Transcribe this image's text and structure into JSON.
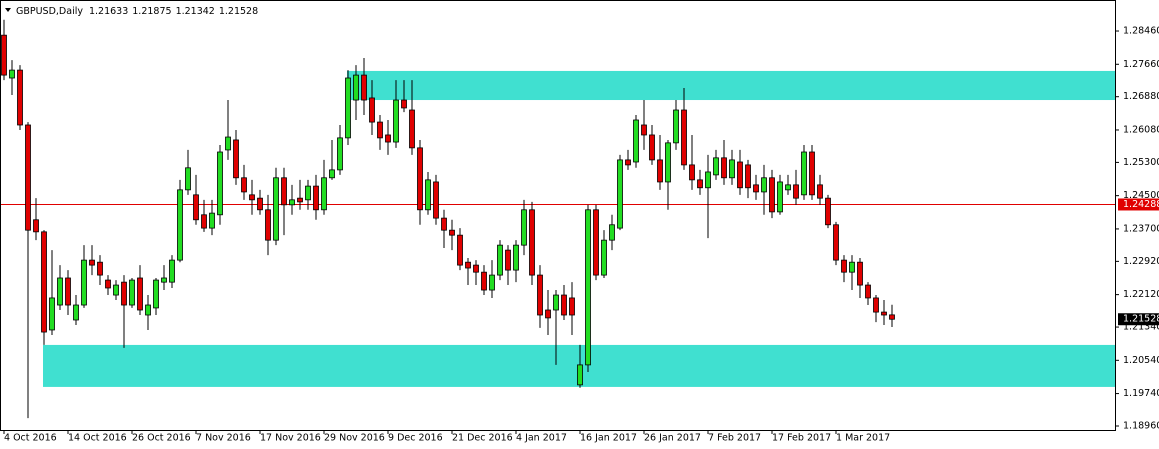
{
  "chart_data": {
    "type": "candlestick",
    "title": "GBPUSD,Daily",
    "categories": [
      "4 Oct 2016",
      null,
      null,
      null,
      null,
      null,
      null,
      null,
      "14 Oct 2016",
      null,
      null,
      null,
      null,
      null,
      null,
      null,
      "26 Oct 2016",
      null,
      null,
      null,
      null,
      null,
      null,
      null,
      "7 Nov 2016",
      null,
      null,
      null,
      null,
      null,
      null,
      null,
      "17 Nov 2016",
      null,
      null,
      null,
      null,
      null,
      null,
      null,
      "29 Nov 2016",
      null,
      null,
      null,
      null,
      null,
      null,
      null,
      "9 Dec 2016",
      null,
      null,
      null,
      null,
      null,
      null,
      null,
      "21 Dec 2016",
      null,
      null,
      null,
      null,
      null,
      null,
      null,
      "4 Jan 2017",
      null,
      null,
      null,
      null,
      null,
      null,
      null,
      "16 Jan 2017",
      null,
      null,
      null,
      null,
      null,
      null,
      null,
      "26 Jan 2017",
      null,
      null,
      null,
      null,
      null,
      null,
      null,
      "7 Feb 2017",
      null,
      null,
      null,
      null,
      null,
      null,
      null,
      "17 Feb 2017",
      null,
      null,
      null,
      null,
      null,
      null,
      null,
      "1 Mar 2017",
      null,
      null,
      null,
      null,
      null,
      null,
      null
    ],
    "open": [
      1.2836,
      1.2733,
      1.2752,
      1.262,
      1.2392,
      1.2363,
      1.2127,
      1.2187,
      1.2252,
      1.2151,
      1.2187,
      1.2295,
      1.229,
      1.2247,
      1.2211,
      1.2242,
      1.2187,
      1.2252,
      1.2163,
      1.218,
      1.2242,
      1.2242,
      1.2295,
      1.2464,
      1.2452,
      1.2404,
      1.2372,
      1.2404,
      1.256,
      1.2584,
      1.2493,
      1.2452,
      1.2444,
      1.2416,
      1.2343,
      1.2493,
      1.2428,
      1.2444,
      1.244,
      1.2473,
      1.2416,
      1.2493,
      1.2512,
      1.2589,
      1.268,
      1.274,
      1.2685,
      1.2627,
      1.2596,
      1.2579,
      1.268,
      1.2656,
      1.2565,
      1.2416,
      1.2483,
      1.2396,
      1.2367,
      1.2355,
      1.229,
      1.2283,
      1.2266,
      1.2223,
      1.2259,
      1.2319,
      1.2271,
      1.2331,
      1.2416,
      1.2259,
      1.2175,
      1.2175,
      1.2211,
      1.2204,
      1.1995,
      1.2043,
      1.2416,
      1.2259,
      1.2343,
      1.2372,
      1.2536,
      1.2531,
      1.262,
      1.2596,
      1.2536,
      1.2483,
      1.2577,
      1.2656,
      1.2524,
      1.2488,
      1.2469,
      1.25,
      1.2541,
      1.2493,
      1.2531,
      1.2524,
      1.2476,
      1.2459,
      1.2493,
      1.2411,
      1.2464,
      1.2476,
      1.2452,
      1.2555,
      1.2476,
      1.2444,
      1.238,
      1.2295,
      1.2266,
      1.229,
      1.2235,
      1.2204,
      1.217,
      1.21633
    ],
    "high": [
      1.2873,
      1.2776,
      1.2764,
      1.2627,
      1.2444,
      1.2367,
      1.2319,
      1.2283,
      1.2271,
      1.2211,
      1.2331,
      1.2331,
      1.2307,
      1.2259,
      1.2247,
      1.2259,
      1.2252,
      1.2283,
      1.2211,
      1.2252,
      1.2283,
      1.2307,
      1.2488,
      1.256,
      1.25,
      1.244,
      1.244,
      1.2572,
      1.268,
      1.2608,
      1.2524,
      1.2488,
      1.2464,
      1.2452,
      1.2517,
      1.2517,
      1.2476,
      1.2488,
      1.2488,
      1.25,
      1.2536,
      1.2584,
      1.262,
      1.2752,
      1.2764,
      1.2781,
      1.2728,
      1.2644,
      1.2632,
      1.2728,
      1.2728,
      1.2728,
      1.2584,
      1.2507,
      1.25,
      1.2416,
      1.2392,
      1.2372,
      1.23,
      1.2295,
      1.2283,
      1.2295,
      1.2343,
      1.2331,
      1.2343,
      1.244,
      1.2435,
      1.2283,
      1.2223,
      1.2223,
      1.2235,
      1.2242,
      1.2091,
      1.2428,
      1.2428,
      1.2367,
      1.2404,
      1.2548,
      1.256,
      1.2644,
      1.268,
      1.262,
      1.2596,
      1.2584,
      1.268,
      1.2709,
      1.2596,
      1.2512,
      1.2548,
      1.256,
      1.2584,
      1.256,
      1.256,
      1.2536,
      1.25,
      1.2524,
      1.2512,
      1.25,
      1.25,
      1.2512,
      1.2572,
      1.2572,
      1.25,
      1.2452,
      1.2387,
      1.2307,
      1.2307,
      1.23,
      1.2242,
      1.2211,
      1.2199,
      1.21875
    ],
    "low": [
      1.2728,
      1.2692,
      1.2608,
      1.1915,
      1.2343,
      1.2091,
      1.2115,
      1.2175,
      1.2163,
      1.2139,
      1.218,
      1.2259,
      1.2235,
      1.2211,
      1.2199,
      1.2084,
      1.218,
      1.2163,
      1.2127,
      1.2163,
      1.2223,
      1.2228,
      1.229,
      1.2452,
      1.238,
      1.2363,
      1.2355,
      1.238,
      1.2536,
      1.2476,
      1.244,
      1.2404,
      1.2404,
      1.2307,
      1.2331,
      1.2355,
      1.2404,
      1.2416,
      1.2416,
      1.2392,
      1.2404,
      1.2488,
      1.25,
      1.2572,
      1.2632,
      1.2644,
      1.2596,
      1.256,
      1.2548,
      1.2565,
      1.2651,
      1.2548,
      1.238,
      1.2404,
      1.238,
      1.2324,
      1.2319,
      1.2271,
      1.2235,
      1.2235,
      1.2211,
      1.2204,
      1.2247,
      1.2235,
      1.2242,
      1.2307,
      1.2235,
      1.2132,
      1.2115,
      1.2043,
      1.2151,
      1.2115,
      1.1988,
      1.2026,
      1.2247,
      1.2252,
      1.2319,
      1.2367,
      1.2512,
      1.2517,
      1.256,
      1.2524,
      1.2464,
      1.2416,
      1.256,
      1.2512,
      1.2464,
      1.2452,
      1.2348,
      1.2488,
      1.2476,
      1.2476,
      1.2452,
      1.2444,
      1.244,
      1.2404,
      1.2396,
      1.2404,
      1.2452,
      1.2428,
      1.244,
      1.244,
      1.2428,
      1.2372,
      1.2283,
      1.2242,
      1.2223,
      1.2204,
      1.2187,
      1.2146,
      1.2139,
      1.21342
    ],
    "close": [
      1.274,
      1.2752,
      1.262,
      1.2367,
      1.2363,
      1.2122,
      1.2204,
      1.2252,
      1.2187,
      1.2187,
      1.2295,
      1.2283,
      1.2259,
      1.2228,
      1.2235,
      1.2187,
      1.2247,
      1.2175,
      1.2187,
      1.2247,
      1.2252,
      1.2295,
      1.2464,
      1.2517,
      1.2392,
      1.2372,
      1.2408,
      1.2555,
      1.2591,
      1.2493,
      1.2459,
      1.244,
      1.2416,
      1.2343,
      1.2493,
      1.2428,
      1.244,
      1.2435,
      1.2473,
      1.2416,
      1.2493,
      1.2512,
      1.2589,
      1.2733,
      1.274,
      1.268,
      1.2627,
      1.2589,
      1.2579,
      1.268,
      1.2661,
      1.2565,
      1.2416,
      1.2488,
      1.2396,
      1.2367,
      1.2355,
      1.2283,
      1.2276,
      1.2266,
      1.2223,
      1.2259,
      1.2331,
      1.2271,
      1.2331,
      1.2416,
      1.2259,
      1.2163,
      1.2156,
      1.2211,
      1.2163,
      1.2163,
      1.2043,
      1.2416,
      1.2259,
      1.2343,
      1.238,
      1.2536,
      1.2524,
      1.2632,
      1.2596,
      1.2536,
      1.2483,
      1.2577,
      1.2656,
      1.2524,
      1.2488,
      1.2469,
      1.2507,
      1.2541,
      1.2493,
      1.2536,
      1.2469,
      1.2469,
      1.2459,
      1.2493,
      1.2411,
      1.2483,
      1.2476,
      1.2444,
      1.2555,
      1.2452,
      1.2444,
      1.238,
      1.2295,
      1.2266,
      1.229,
      1.2235,
      1.2204,
      1.217,
      1.2163,
      1.21528
    ],
    "up_color": "#22dd22",
    "down_color": "#e00000",
    "ylim": [
      1.18864,
      1.29206
    ],
    "yticks": [
      {
        "value": 1.2846,
        "label": "1.28460"
      },
      {
        "value": 1.2766,
        "label": "1.27660"
      },
      {
        "value": 1.2688,
        "label": "1.26880"
      },
      {
        "value": 1.2608,
        "label": "1.26080"
      },
      {
        "value": 1.253,
        "label": "1.25300"
      },
      {
        "value": 1.245,
        "label": "1.24500"
      },
      {
        "value": 1.237,
        "label": "1.23700"
      },
      {
        "value": 1.2292,
        "label": "1.22920"
      },
      {
        "value": 1.2212,
        "label": "1.22120"
      },
      {
        "value": 1.2134,
        "label": "1.21340"
      },
      {
        "value": 1.2054,
        "label": "1.20540"
      },
      {
        "value": 1.1974,
        "label": "1.19740"
      },
      {
        "value": 1.1896,
        "label": "1.18960"
      }
    ],
    "hline": 1.24288,
    "hline_color": "#e00000",
    "zones": [
      {
        "ylim": [
          1.268,
          1.275
        ],
        "color": "#40e0d0"
      },
      {
        "ylim": [
          1.199,
          1.2091
        ],
        "color": "#40e0d0"
      }
    ]
  }
}
